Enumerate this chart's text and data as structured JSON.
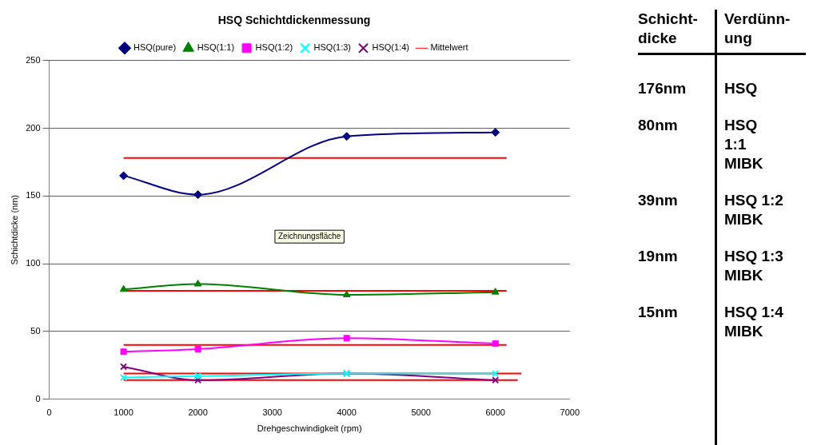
{
  "chart_data": [
    {
      "type": "line",
      "title": "HSQ Schichtdickenmessung",
      "xlabel": "Drehgeschwindigkeit (rpm)",
      "ylabel": "Schichtdicke (nm)",
      "x": [
        1000,
        2000,
        4000,
        6000
      ],
      "xlim": [
        0,
        7000
      ],
      "xticks": [
        0,
        1000,
        2000,
        3000,
        4000,
        5000,
        6000,
        7000
      ],
      "ylim": [
        0,
        250
      ],
      "yticks": [
        0,
        50,
        100,
        150,
        200,
        250
      ],
      "grid": "y",
      "legend": "top",
      "annotations": [
        "Zeichnungsfläche"
      ],
      "series": [
        {
          "name": "HSQ(pure)",
          "color": "#000080",
          "marker": "diamond",
          "values": [
            165,
            151,
            194,
            197
          ]
        },
        {
          "name": "HSQ(1:1)",
          "color": "#008000",
          "marker": "triangle",
          "values": [
            81,
            85,
            77,
            79
          ]
        },
        {
          "name": "HSQ(1:2)",
          "color": "#ff00ff",
          "marker": "square",
          "values": [
            35,
            37,
            45,
            41
          ]
        },
        {
          "name": "HSQ(1:3)",
          "color": "#00ffff",
          "marker": "cross",
          "values": [
            16,
            17,
            19,
            19
          ]
        },
        {
          "name": "HSQ(1:4)",
          "color": "#800080",
          "marker": "cross",
          "values": [
            24,
            14,
            19,
            14
          ]
        },
        {
          "name": "Mittelwert",
          "color": "#ff0000",
          "marker": "none",
          "x": [
            1000,
            6150
          ],
          "values": [
            178,
            178
          ]
        },
        {
          "color": "#ff0000",
          "marker": "none",
          "x": [
            1000,
            6150
          ],
          "values": [
            80,
            80
          ]
        },
        {
          "color": "#ff0000",
          "marker": "none",
          "x": [
            1000,
            6150
          ],
          "values": [
            40,
            40
          ]
        },
        {
          "color": "#ff0000",
          "marker": "none",
          "x": [
            1000,
            6350
          ],
          "values": [
            19,
            19
          ]
        },
        {
          "color": "#ff0000",
          "marker": "none",
          "x": [
            1000,
            6300
          ],
          "values": [
            14,
            14
          ]
        }
      ]
    },
    {
      "type": "other",
      "annotations": [
        "Schicht-\ndicke",
        "Verdünn-\nung",
        "176nm",
        "HSQ",
        "80nm",
        "HSQ\n1:1\nMIBK",
        "39nm",
        "HSQ 1:2\nMIBK",
        "19nm",
        "HSQ 1:3\nMIBK",
        "15nm",
        "HSQ 1:4\nMIBK"
      ]
    }
  ]
}
